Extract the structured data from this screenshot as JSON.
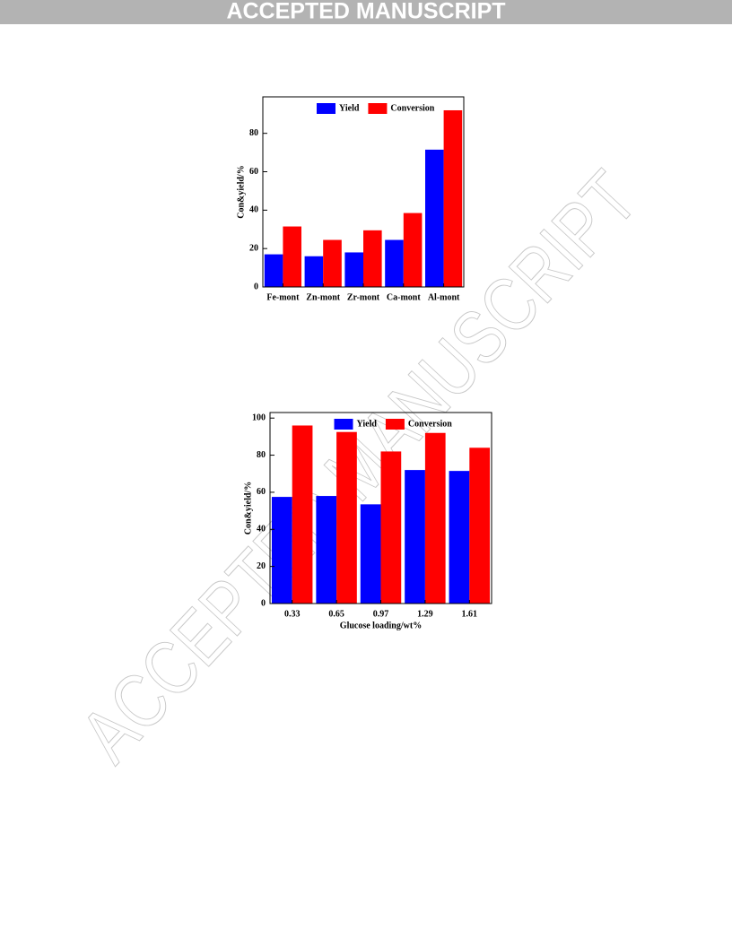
{
  "header": {
    "title": "ACCEPTED MANUSCRIPT"
  },
  "watermark": "ACCEPTED MANUSCRIPT",
  "chart_data": [
    {
      "type": "bar",
      "y_label": "Con&yield/%",
      "categories": [
        "Fe-mont",
        "Zn-mont",
        "Zr-mont",
        "Ca-mont",
        "Al-mont"
      ],
      "series": [
        {
          "name": "Yield",
          "color": "#0000ff",
          "values": [
            17,
            16,
            18,
            24.5,
            71.5
          ]
        },
        {
          "name": "Conversion",
          "color": "#ff0000",
          "values": [
            31.5,
            24.5,
            29.5,
            38.5,
            92
          ]
        }
      ],
      "ylim": [
        0,
        99
      ],
      "yticks": [
        0,
        20,
        40,
        60,
        80
      ],
      "legend": "top"
    },
    {
      "type": "bar",
      "y_label": "Con&yield/%",
      "x_label": "Glucose loading/wt%",
      "categories": [
        "0.33",
        "0.65",
        "0.97",
        "1.29",
        "1.61"
      ],
      "series": [
        {
          "name": "Yield",
          "color": "#0000ff",
          "values": [
            57.5,
            58,
            53.5,
            72,
            71.5
          ]
        },
        {
          "name": "Conversion",
          "color": "#ff0000",
          "values": [
            96,
            92.5,
            82,
            92,
            84
          ]
        }
      ],
      "ylim": [
        0,
        103
      ],
      "yticks": [
        0,
        20,
        40,
        60,
        80,
        100
      ],
      "legend": "top"
    }
  ]
}
